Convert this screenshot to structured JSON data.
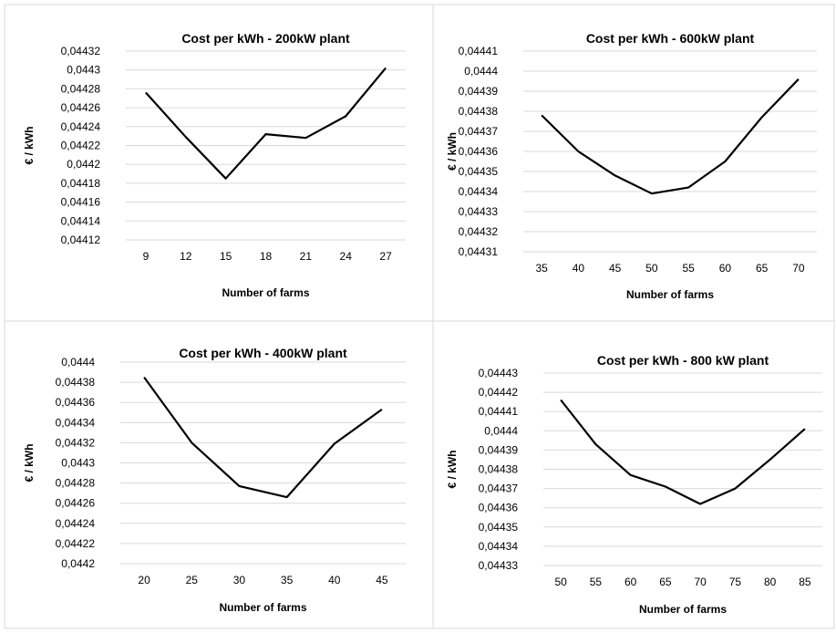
{
  "chart_data": [
    {
      "type": "line",
      "title": "Cost per kWh - 200kW plant",
      "xlabel": "Number of farms",
      "ylabel": "€ / kWh",
      "categories": [
        "9",
        "12",
        "15",
        "18",
        "21",
        "24",
        "27"
      ],
      "series": [
        {
          "values": [
            0.044276,
            0.044229,
            0.044185,
            0.044232,
            0.044228,
            0.044251,
            0.044302
          ]
        }
      ],
      "ylim": [
        0.04412,
        0.04432
      ],
      "yticks": [
        "0,04412",
        "0,04414",
        "0,04416",
        "0,04418",
        "0,0442",
        "0,04422",
        "0,04424",
        "0,04426",
        "0,04428",
        "0,0443",
        "0,04432"
      ],
      "grid": true,
      "line_color": "#000000",
      "grid_color": "#d9d9d9"
    },
    {
      "type": "line",
      "title": "Cost per kWh - 600kW plant",
      "xlabel": "Number of farms",
      "ylabel": "€ / kWh",
      "categories": [
        "35",
        "40",
        "45",
        "50",
        "55",
        "60",
        "65",
        "70"
      ],
      "series": [
        {
          "values": [
            0.044378,
            0.04436,
            0.044348,
            0.044339,
            0.044342,
            0.044355,
            0.044377,
            0.044396
          ]
        }
      ],
      "ylim": [
        0.04431,
        0.04441
      ],
      "yticks": [
        "0,04431",
        "0,04432",
        "0,04433",
        "0,04434",
        "0,04435",
        "0,04436",
        "0,04437",
        "0,04438",
        "0,04439",
        "0,0444",
        "0,04441"
      ],
      "grid": true,
      "line_color": "#000000",
      "grid_color": "#d9d9d9"
    },
    {
      "type": "line",
      "title": "Cost per kWh - 400kW plant",
      "xlabel": "Number of farms",
      "ylabel": "€ / kWh",
      "categories": [
        "20",
        "25",
        "30",
        "35",
        "40",
        "45"
      ],
      "series": [
        {
          "values": [
            0.044385,
            0.04432,
            0.044277,
            0.044266,
            0.044319,
            0.044353
          ]
        }
      ],
      "ylim": [
        0.0442,
        0.0444
      ],
      "yticks": [
        "0,0442",
        "0,04422",
        "0,04424",
        "0,04426",
        "0,04428",
        "0,0443",
        "0,04432",
        "0,04434",
        "0,04436",
        "0,04438",
        "0,0444"
      ],
      "grid": true,
      "line_color": "#000000",
      "grid_color": "#d9d9d9"
    },
    {
      "type": "line",
      "title": "Cost per kWh - 800 kW plant",
      "xlabel": "Number of farms",
      "ylabel": "€ / kWh",
      "categories": [
        "50",
        "55",
        "60",
        "65",
        "70",
        "75",
        "80",
        "85"
      ],
      "series": [
        {
          "values": [
            0.044416,
            0.044393,
            0.044377,
            0.044371,
            0.044362,
            0.04437,
            0.044385,
            0.044401
          ]
        }
      ],
      "ylim": [
        0.04433,
        0.04443
      ],
      "yticks": [
        "0,04433",
        "0,04434",
        "0,04435",
        "0,04436",
        "0,04437",
        "0,04438",
        "0,04439",
        "0,0444",
        "0,04441",
        "0,04442",
        "0,04443"
      ],
      "grid": true,
      "line_color": "#000000",
      "grid_color": "#d9d9d9"
    }
  ]
}
